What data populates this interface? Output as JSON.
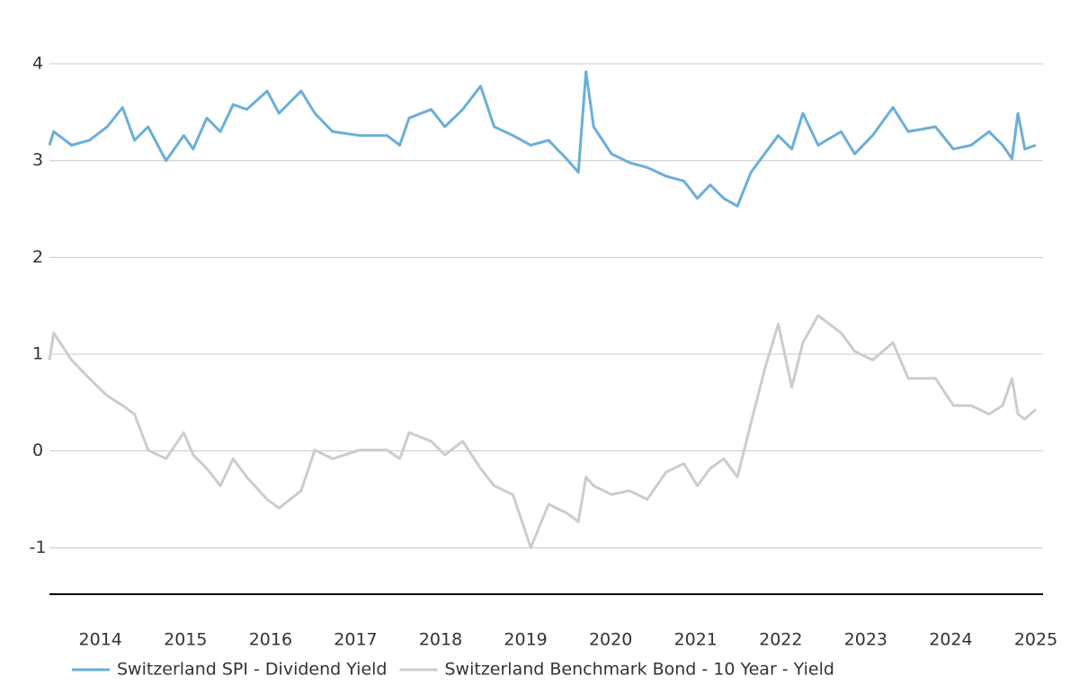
{
  "chart_data": {
    "type": "line",
    "x": [
      2013.4,
      2013.45,
      2013.66,
      2013.87,
      2014.08,
      2014.26,
      2014.4,
      2014.56,
      2014.77,
      2014.98,
      2015.09,
      2015.25,
      2015.41,
      2015.56,
      2015.72,
      2015.96,
      2016.1,
      2016.36,
      2016.52,
      2016.73,
      2017.05,
      2017.37,
      2017.52,
      2017.63,
      2017.89,
      2018.05,
      2018.26,
      2018.47,
      2018.63,
      2018.85,
      2019.06,
      2019.27,
      2019.48,
      2019.62,
      2019.71,
      2019.8,
      2020.01,
      2020.22,
      2020.43,
      2020.65,
      2020.86,
      2021.02,
      2021.17,
      2021.33,
      2021.49,
      2021.65,
      2021.81,
      2021.97,
      2022.13,
      2022.26,
      2022.44,
      2022.71,
      2022.87,
      2023.08,
      2023.32,
      2023.5,
      2023.82,
      2024.03,
      2024.24,
      2024.45,
      2024.61,
      2024.72,
      2024.79,
      2024.87,
      2025.0
    ],
    "series": [
      {
        "name": "Switzerland SPI - Dividend Yield",
        "color": "#6aafd8",
        "values": [
          3.16,
          3.3,
          3.16,
          3.21,
          3.35,
          3.55,
          3.21,
          3.35,
          3.0,
          3.26,
          3.12,
          3.44,
          3.3,
          3.58,
          3.53,
          3.72,
          3.49,
          3.72,
          3.49,
          3.3,
          3.26,
          3.26,
          3.16,
          3.44,
          3.53,
          3.35,
          3.53,
          3.77,
          3.35,
          3.26,
          3.16,
          3.21,
          3.02,
          2.88,
          3.92,
          3.35,
          3.07,
          2.98,
          2.93,
          2.84,
          2.79,
          2.61,
          2.75,
          2.61,
          2.53,
          2.88,
          3.07,
          3.26,
          3.12,
          3.49,
          3.16,
          3.3,
          3.07,
          3.26,
          3.55,
          3.3,
          3.35,
          3.12,
          3.16,
          3.3,
          3.16,
          3.02,
          3.49,
          3.12,
          3.16
        ]
      },
      {
        "name": "Switzerland Benchmark Bond - 10 Year - Yield",
        "color": "#cccccc",
        "values": [
          0.94,
          1.22,
          0.94,
          0.75,
          0.57,
          0.47,
          0.38,
          0.01,
          -0.08,
          0.19,
          -0.04,
          -0.18,
          -0.36,
          -0.08,
          -0.27,
          -0.5,
          -0.59,
          -0.41,
          0.01,
          -0.08,
          0.01,
          0.01,
          -0.08,
          0.19,
          0.1,
          -0.04,
          0.1,
          -0.18,
          -0.36,
          -0.45,
          -1.0,
          -0.55,
          -0.64,
          -0.73,
          -0.27,
          -0.36,
          -0.45,
          -0.41,
          -0.5,
          -0.22,
          -0.13,
          -0.36,
          -0.18,
          -0.08,
          -0.27,
          0.29,
          0.84,
          1.31,
          0.66,
          1.12,
          1.4,
          1.22,
          1.03,
          0.94,
          1.12,
          0.75,
          0.75,
          0.47,
          0.47,
          0.38,
          0.47,
          0.75,
          0.38,
          0.33,
          0.43
        ]
      }
    ],
    "xlim": [
      2013.4,
      2025.0
    ],
    "xticks": [
      2014,
      2015,
      2016,
      2017,
      2018,
      2019,
      2020,
      2021,
      2022,
      2023,
      2024,
      2025
    ],
    "ylim": [
      -1.48,
      4.4
    ],
    "yticks": [
      -1,
      0,
      1,
      2,
      3,
      4
    ],
    "grid": true
  }
}
